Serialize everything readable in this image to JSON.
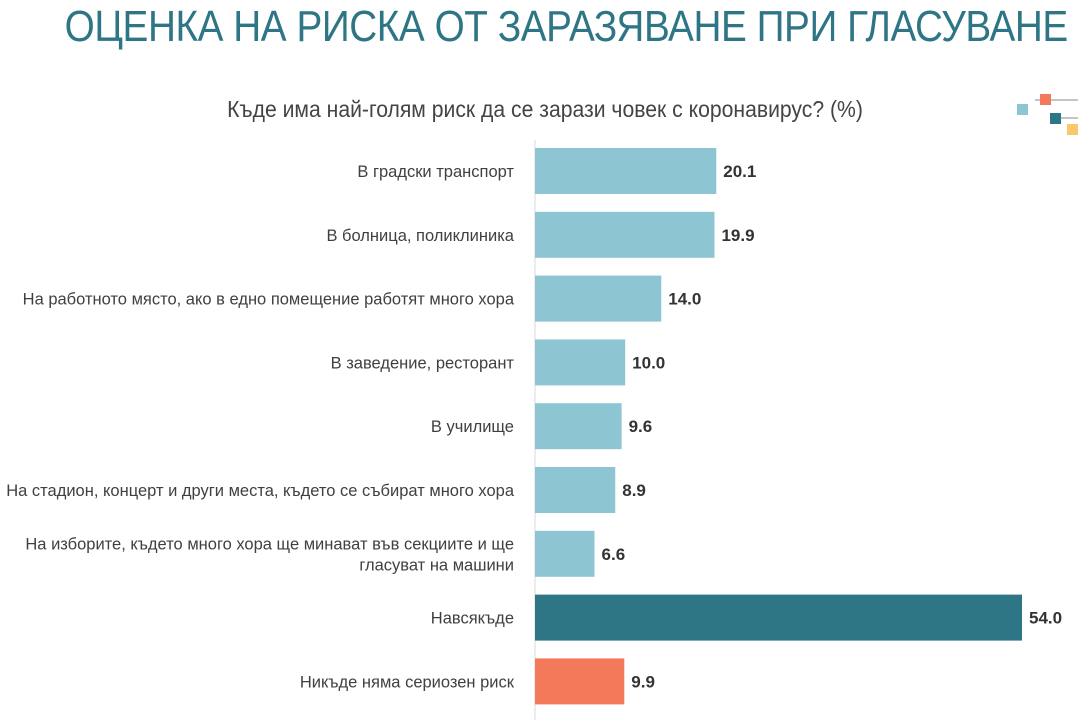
{
  "page": {
    "title": "ОЦЕНКА НА РИСКА ОТ ЗАРАЗЯВАНЕ ПРИ ГЛАСУВАНЕ"
  },
  "chart_data": {
    "type": "bar",
    "orientation": "horizontal",
    "title": "Къде има най-голям риск да се зарази човек с коронавирус? (%)",
    "categories": [
      "В градски транспорт",
      "В болница, поликлиника",
      "На работното място, ако в едно помещение работят много хора",
      "В заведение, ресторант",
      "В училище",
      "На стадион, концерт и други места, където се събират много хора",
      [
        "На изборите, където много хора ще минават във секциите и ще",
        "гласуват на машини"
      ],
      "Навсякъде",
      "Никъде няма сериозен риск"
    ],
    "values": [
      20.1,
      19.9,
      14.0,
      10.0,
      9.6,
      8.9,
      6.6,
      54.0,
      9.9
    ],
    "value_labels": [
      "20.1",
      "19.9",
      "14.0",
      "10.0",
      "9.6",
      "8.9",
      "6.6",
      "54.0",
      "9.9"
    ],
    "bar_colors": [
      "#8dc6d2",
      "#8dc6d2",
      "#8dc6d2",
      "#8dc6d2",
      "#8dc6d2",
      "#8dc6d2",
      "#8dc6d2",
      "#2e7585",
      "#f3795a"
    ],
    "xlim": [
      0,
      54
    ],
    "grid": false,
    "legend": "none"
  },
  "decoration": {
    "colors": [
      "#f3795a",
      "#8dc6d2",
      "#2e7585",
      "#f9c86a"
    ]
  }
}
